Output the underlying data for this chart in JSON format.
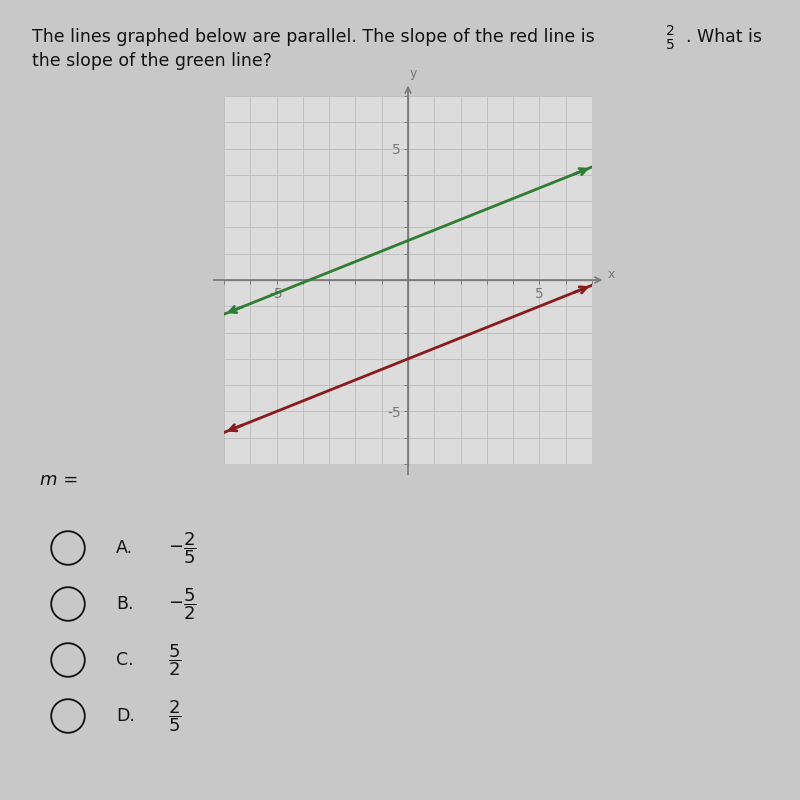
{
  "bg_color": "#c8c8c8",
  "graph_bg": "#dcdcdc",
  "graph_border": "#999999",
  "green_line_color": "#2e7d32",
  "red_line_color": "#8b1a1a",
  "axis_color": "#777777",
  "grid_color": "#bbbbbb",
  "text_color": "#111111",
  "xlim": [
    -7,
    7
  ],
  "ylim": [
    -7,
    7
  ],
  "green_slope": 0.4,
  "green_intercept": 1.5,
  "red_slope": 0.4,
  "red_intercept": -3.0,
  "m_label": "m =",
  "choice_labels": [
    "A.",
    "B.",
    "C.",
    "D."
  ],
  "choice_fracs": [
    "$-\\dfrac{2}{5}$",
    "$-\\dfrac{5}{2}$",
    "$\\dfrac{5}{2}$",
    "$\\dfrac{2}{5}$"
  ]
}
